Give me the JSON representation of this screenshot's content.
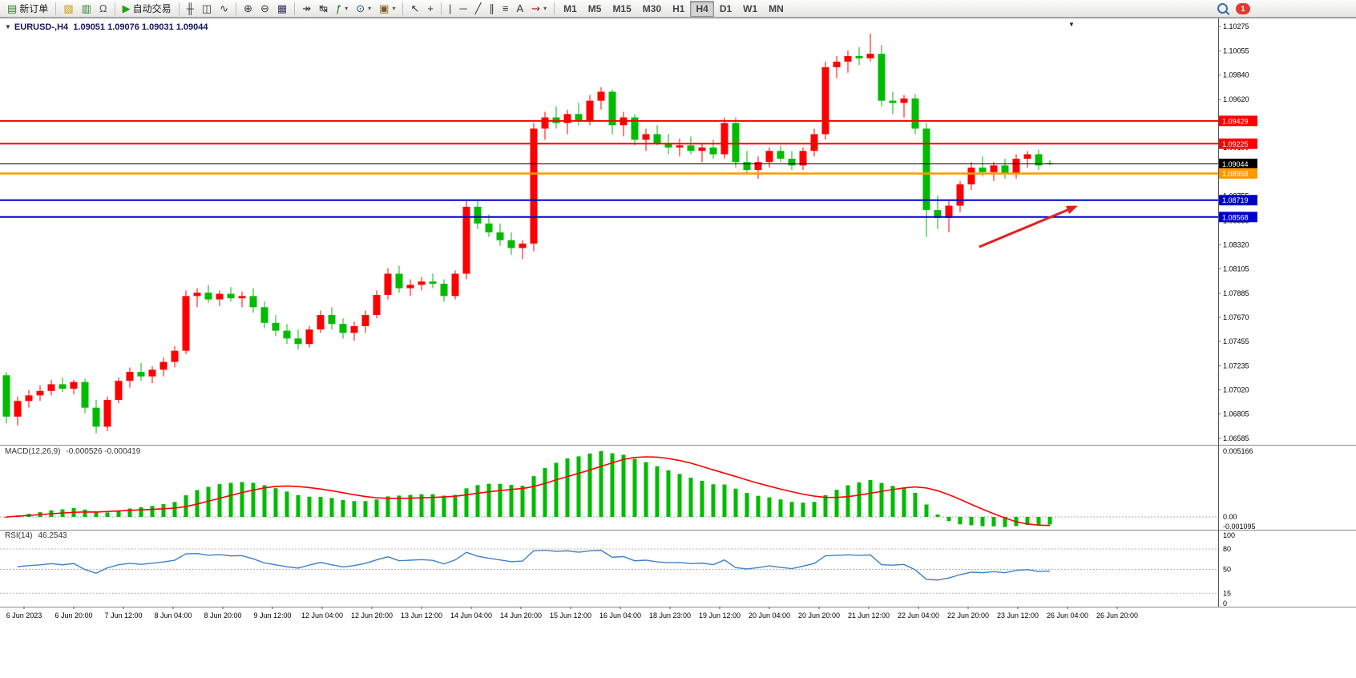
{
  "toolbar": {
    "items": [
      {
        "type": "button",
        "name": "new-order-button",
        "icon": "new-order-icon",
        "glyph": "▤",
        "glyph_color": "#2e7d32",
        "label": "新订单"
      },
      {
        "type": "sep"
      },
      {
        "type": "button",
        "name": "chart-page-button",
        "icon": "chart-page-icon",
        "glyph": "▨",
        "glyph_color": "#c89600"
      },
      {
        "type": "button",
        "name": "market-watch-button",
        "icon": "bar-chart-icon",
        "glyph": "▥",
        "glyph_color": "#2e7d32"
      },
      {
        "type": "button",
        "name": "data-window-button",
        "icon": "headset-icon",
        "glyph": "Ω",
        "glyph_color": "#556"
      },
      {
        "type": "sep"
      },
      {
        "type": "button",
        "name": "autotrade-button",
        "icon": "play-icon",
        "glyph": "▶",
        "glyph_color": "#18a318",
        "label": "自动交易"
      },
      {
        "type": "sep"
      },
      {
        "type": "button",
        "name": "ohlc-bars-button",
        "icon": "ohlc-bars-icon",
        "glyph": "╫",
        "glyph_color": "#333"
      },
      {
        "type": "button",
        "name": "candlestick-button",
        "icon": "candlestick-icon",
        "glyph": "◫",
        "glyph_color": "#333"
      },
      {
        "type": "button",
        "name": "line-chart-button",
        "icon": "line-chart-icon",
        "glyph": "∿",
        "glyph_color": "#333"
      },
      {
        "type": "sep"
      },
      {
        "type": "button",
        "name": "zoom-in-button",
        "icon": "zoom-in-icon",
        "glyph": "⊕",
        "glyph_color": "#333"
      },
      {
        "type": "button",
        "name": "zoom-out-button",
        "icon": "zoom-out-icon",
        "glyph": "⊖",
        "glyph_color": "#333"
      },
      {
        "type": "button",
        "name": "tile-windows-button",
        "icon": "tile-windows-icon",
        "glyph": "▦",
        "glyph_color": "#336"
      },
      {
        "type": "sep"
      },
      {
        "type": "button",
        "name": "auto-scroll-button",
        "icon": "auto-scroll-icon",
        "glyph": "↠",
        "glyph_color": "#333"
      },
      {
        "type": "button",
        "name": "chart-shift-button",
        "icon": "chart-shift-icon",
        "glyph": "↹",
        "glyph_color": "#333"
      },
      {
        "type": "button",
        "name": "indicators-button",
        "icon": "indicators-icon",
        "glyph": "ƒ",
        "glyph_color": "#1a7a1a",
        "dropdown": true
      },
      {
        "type": "button",
        "name": "periods-button",
        "icon": "clock-icon",
        "glyph": "⊙",
        "glyph_color": "#1a5276",
        "dropdown": true
      },
      {
        "type": "button",
        "name": "templates-button",
        "icon": "template-icon",
        "glyph": "▣",
        "glyph_color": "#7a5c1a",
        "dropdown": true
      },
      {
        "type": "sep"
      },
      {
        "type": "button",
        "name": "cursor-button",
        "icon": "cursor-icon",
        "glyph": "↖",
        "glyph_color": "#333"
      },
      {
        "type": "button",
        "name": "crosshair-button",
        "icon": "crosshair-icon",
        "glyph": "+",
        "glyph_color": "#333"
      },
      {
        "type": "sep"
      },
      {
        "type": "button",
        "name": "vertical-line-button",
        "icon": "vertical-line-icon",
        "glyph": "|",
        "glyph_color": "#333"
      },
      {
        "type": "button",
        "name": "horizontal-line-button",
        "icon": "horizontal-line-icon",
        "glyph": "─",
        "glyph_color": "#333"
      },
      {
        "type": "button",
        "name": "trendline-button",
        "icon": "trendline-icon",
        "glyph": "╱",
        "glyph_color": "#333"
      },
      {
        "type": "button",
        "name": "channel-button",
        "icon": "channel-icon",
        "glyph": "∥",
        "glyph_color": "#333"
      },
      {
        "type": "button",
        "name": "fibonacci-button",
        "icon": "fibonacci-icon",
        "glyph": "≡",
        "glyph_color": "#333"
      },
      {
        "type": "button",
        "name": "text-tool-button",
        "icon": "text-icon",
        "glyph": "A",
        "glyph_color": "#333"
      },
      {
        "type": "button",
        "name": "arrows-tool-button",
        "icon": "arrow-tool-icon",
        "glyph": "⇝",
        "glyph_color": "#aa2222",
        "dropdown": true
      },
      {
        "type": "sep"
      },
      {
        "type": "tf",
        "name": "tf-m1-button",
        "label": "M1"
      },
      {
        "type": "tf",
        "name": "tf-m5-button",
        "label": "M5"
      },
      {
        "type": "tf",
        "name": "tf-m15-button",
        "label": "M15"
      },
      {
        "type": "tf",
        "name": "tf-m30-button",
        "label": "M30"
      },
      {
        "type": "tf",
        "name": "tf-h1-button",
        "label": "H1"
      },
      {
        "type": "tf",
        "name": "tf-h4-button",
        "label": "H4"
      },
      {
        "type": "tf",
        "name": "tf-d1-button",
        "label": "D1"
      },
      {
        "type": "tf",
        "name": "tf-w1-button",
        "label": "W1"
      },
      {
        "type": "tf",
        "name": "tf-mn-button",
        "label": "MN"
      }
    ],
    "active_timeframe": "H4",
    "notification_count": "1"
  },
  "chart": {
    "symbol_title": "EURUSD-,H4",
    "ohlc_text": "1.09051 1.09076 1.09031 1.09044"
  },
  "chart_data": {
    "type": "candlestick",
    "symbol": "EURUSD-",
    "timeframe": "H4",
    "current": {
      "open": "1.09051",
      "high": "1.09076",
      "low": "1.09031",
      "close": "1.09044"
    },
    "ylim": [
      1.06585,
      1.10275
    ],
    "bull_color": "#ff0000",
    "bear_color": "#00bb00",
    "price_axis": [
      "1.10275",
      "1.10055",
      "1.09840",
      "1.09620",
      "1.09405",
      "1.09190",
      "1.08970",
      "1.08755",
      "1.08535",
      "1.08320",
      "1.08105",
      "1.07885",
      "1.07670",
      "1.07455",
      "1.07235",
      "1.07020",
      "1.06805",
      "1.06585"
    ],
    "time_axis": [
      "6 Jun 2023",
      "6 Jun 20:00",
      "7 Jun 12:00",
      "8 Jun 04:00",
      "8 Jun 20:00",
      "9 Jun 12:00",
      "12 Jun 04:00",
      "12 Jun 20:00",
      "13 Jun 12:00",
      "14 Jun 04:00",
      "14 Jun 20:00",
      "15 Jun 12:00",
      "16 Jun 04:00",
      "18 Jun 23:00",
      "19 Jun 12:00",
      "20 Jun 04:00",
      "20 Jun 20:00",
      "21 Jun 12:00",
      "22 Jun 04:00",
      "22 Jun 20:00",
      "23 Jun 12:00",
      "26 Jun 04:00",
      "26 Jun 20:00"
    ],
    "hlines": [
      {
        "price": 1.09429,
        "label": "1.09429",
        "color": "#ff0000",
        "width": 2
      },
      {
        "price": 1.09225,
        "label": "1.09225",
        "color": "#ff0000",
        "width": 2
      },
      {
        "price": 1.09044,
        "label": "1.09044",
        "color": "#000000",
        "width": 1
      },
      {
        "price": 1.08958,
        "label": "1.08958",
        "color": "#ff9900",
        "width": 2.5
      },
      {
        "price": 1.08719,
        "label": "1.08719",
        "color": "#0000cd",
        "width": 2
      },
      {
        "price": 1.08568,
        "label": "1.08568",
        "color": "#0000cd",
        "width": 2
      }
    ],
    "candles": [
      [
        1.0715,
        1.0718,
        1.0672,
        1.0678
      ],
      [
        1.0678,
        1.0696,
        1.067,
        1.0692
      ],
      [
        1.0692,
        1.0702,
        1.0686,
        1.0697
      ],
      [
        1.0697,
        1.0706,
        1.0692,
        1.0701
      ],
      [
        1.0701,
        1.0711,
        1.0697,
        1.0707
      ],
      [
        1.0707,
        1.0713,
        1.07,
        1.0703
      ],
      [
        1.0703,
        1.0711,
        1.0698,
        1.0709
      ],
      [
        1.0709,
        1.0712,
        1.0681,
        1.0686
      ],
      [
        1.0686,
        1.0693,
        1.0663,
        1.0669
      ],
      [
        1.0669,
        1.0696,
        1.0665,
        1.0693
      ],
      [
        1.0693,
        1.0713,
        1.069,
        1.071
      ],
      [
        1.071,
        1.0722,
        1.0704,
        1.0718
      ],
      [
        1.0718,
        1.0726,
        1.071,
        1.0714
      ],
      [
        1.0714,
        1.0723,
        1.0708,
        1.072
      ],
      [
        1.072,
        1.0731,
        1.0714,
        1.0727
      ],
      [
        1.0727,
        1.0741,
        1.0722,
        1.0737
      ],
      [
        1.0737,
        1.0791,
        1.0734,
        1.0786
      ],
      [
        1.0786,
        1.0793,
        1.0776,
        1.0789
      ],
      [
        1.0789,
        1.0796,
        1.078,
        1.0783
      ],
      [
        1.0783,
        1.0791,
        1.0777,
        1.0788
      ],
      [
        1.0788,
        1.0794,
        1.0781,
        1.0784
      ],
      [
        1.0784,
        1.079,
        1.0776,
        1.0786
      ],
      [
        1.0786,
        1.0793,
        1.0771,
        1.0776
      ],
      [
        1.0776,
        1.0781,
        1.0757,
        1.0762
      ],
      [
        1.0762,
        1.0769,
        1.075,
        1.0755
      ],
      [
        1.0755,
        1.0761,
        1.0743,
        1.0748
      ],
      [
        1.0748,
        1.0756,
        1.0738,
        1.0743
      ],
      [
        1.0743,
        1.0759,
        1.074,
        1.0756
      ],
      [
        1.0756,
        1.0773,
        1.0753,
        1.0769
      ],
      [
        1.0769,
        1.0776,
        1.0756,
        1.0761
      ],
      [
        1.0761,
        1.0766,
        1.0748,
        1.0753
      ],
      [
        1.0753,
        1.0763,
        1.0746,
        1.0759
      ],
      [
        1.0759,
        1.0773,
        1.0753,
        1.0769
      ],
      [
        1.0769,
        1.0791,
        1.0766,
        1.0787
      ],
      [
        1.0787,
        1.0811,
        1.0783,
        1.0806
      ],
      [
        1.0806,
        1.0813,
        1.0789,
        1.0793
      ],
      [
        1.0793,
        1.0801,
        1.0786,
        1.0796
      ],
      [
        1.0796,
        1.0803,
        1.0791,
        1.0799
      ],
      [
        1.0799,
        1.0806,
        1.0793,
        1.0797
      ],
      [
        1.0797,
        1.0801,
        1.0781,
        1.0786
      ],
      [
        1.0786,
        1.0809,
        1.0783,
        1.0806
      ],
      [
        1.0806,
        1.0871,
        1.0801,
        1.0866
      ],
      [
        1.0866,
        1.0871,
        1.0846,
        1.0851
      ],
      [
        1.0851,
        1.0859,
        1.0839,
        1.0843
      ],
      [
        1.0843,
        1.0851,
        1.0831,
        1.0836
      ],
      [
        1.0836,
        1.0843,
        1.0823,
        1.0829
      ],
      [
        1.0829,
        1.0836,
        1.0819,
        1.0833
      ],
      [
        1.0833,
        1.0941,
        1.0826,
        1.0936
      ],
      [
        1.0936,
        1.0951,
        1.0926,
        1.0946
      ],
      [
        1.0946,
        1.0956,
        1.0936,
        1.0941
      ],
      [
        1.0941,
        1.0953,
        1.0931,
        1.0949
      ],
      [
        1.0949,
        1.0959,
        1.0939,
        1.0943
      ],
      [
        1.0943,
        1.0966,
        1.0939,
        1.0961
      ],
      [
        1.0961,
        1.0973,
        1.0953,
        1.0969
      ],
      [
        1.0969,
        1.0971,
        1.0931,
        1.0939
      ],
      [
        1.0939,
        1.0951,
        1.0929,
        1.0946
      ],
      [
        1.0946,
        1.0949,
        1.0921,
        1.0926
      ],
      [
        1.0926,
        1.0936,
        1.0916,
        1.0931
      ],
      [
        1.0931,
        1.0939,
        1.0921,
        1.0923
      ],
      [
        1.0923,
        1.0931,
        1.0913,
        1.0919
      ],
      [
        1.0919,
        1.0927,
        1.0911,
        1.0921
      ],
      [
        1.0921,
        1.0929,
        1.0913,
        1.0916
      ],
      [
        1.0916,
        1.0923,
        1.0906,
        1.0919
      ],
      [
        1.0919,
        1.0926,
        1.0909,
        1.0913
      ],
      [
        1.0913,
        1.0946,
        1.0909,
        1.0941
      ],
      [
        1.0941,
        1.0946,
        1.0901,
        1.0906
      ],
      [
        1.0906,
        1.0916,
        1.0896,
        1.0899
      ],
      [
        1.0899,
        1.0911,
        1.0891,
        1.0906
      ],
      [
        1.0906,
        1.0919,
        1.0901,
        1.0916
      ],
      [
        1.0916,
        1.0921,
        1.0906,
        1.0909
      ],
      [
        1.0909,
        1.0916,
        1.0899,
        1.0903
      ],
      [
        1.0903,
        1.0919,
        1.0899,
        1.0916
      ],
      [
        1.0916,
        1.0936,
        1.0911,
        1.0931
      ],
      [
        1.0931,
        1.0996,
        1.0926,
        1.0991
      ],
      [
        1.0991,
        1.1001,
        1.0981,
        1.0996
      ],
      [
        1.0996,
        1.1006,
        1.0986,
        1.1001
      ],
      [
        1.1001,
        1.1009,
        1.0993,
        1.0999
      ],
      [
        1.0999,
        1.1021,
        1.0996,
        1.1003
      ],
      [
        1.1003,
        1.1011,
        1.0956,
        1.0961
      ],
      [
        1.0961,
        1.0969,
        1.0949,
        1.0959
      ],
      [
        1.0959,
        1.0966,
        1.0946,
        1.0963
      ],
      [
        1.0963,
        1.0967,
        1.0931,
        1.0936
      ],
      [
        1.0936,
        1.0941,
        1.0839,
        1.0863
      ],
      [
        1.0863,
        1.0876,
        1.0846,
        1.0856
      ],
      [
        1.0856,
        1.0871,
        1.0843,
        1.0867
      ],
      [
        1.0867,
        1.0889,
        1.0861,
        1.0886
      ],
      [
        1.0886,
        1.0906,
        1.0881,
        1.0901
      ],
      [
        1.0901,
        1.0911,
        1.0893,
        1.0897
      ],
      [
        1.0897,
        1.0906,
        1.0889,
        1.0903
      ],
      [
        1.0903,
        1.0909,
        1.0891,
        1.0896
      ],
      [
        1.0896,
        1.0913,
        1.0891,
        1.0909
      ],
      [
        1.0909,
        1.0916,
        1.0901,
        1.0913
      ],
      [
        1.0913,
        1.0917,
        1.0899,
        1.0903
      ],
      [
        1.09051,
        1.09076,
        1.09031,
        1.09044
      ]
    ],
    "macd": {
      "label": "MACD(12,26,9)",
      "values_text": "-0.000526 -0.000419",
      "fast": 12,
      "slow": 26,
      "signal": 9,
      "scale": [
        "0.005166",
        "0.00",
        "-0.001095"
      ],
      "hist_color": "#00bb00",
      "signal_color": "#ff0000"
    },
    "rsi": {
      "label": "RSI(14)",
      "value": "46.2543",
      "period": 14,
      "scale": [
        "100",
        "80",
        "50",
        "15",
        "0"
      ],
      "levels": [
        80,
        50,
        15
      ],
      "color": "#3c82c8"
    },
    "arrow": {
      "x1_bar": 86.7,
      "y1_price": 1.083,
      "x2_bar": 95.5,
      "y2_price": 1.0867,
      "color": "#e02020"
    }
  }
}
